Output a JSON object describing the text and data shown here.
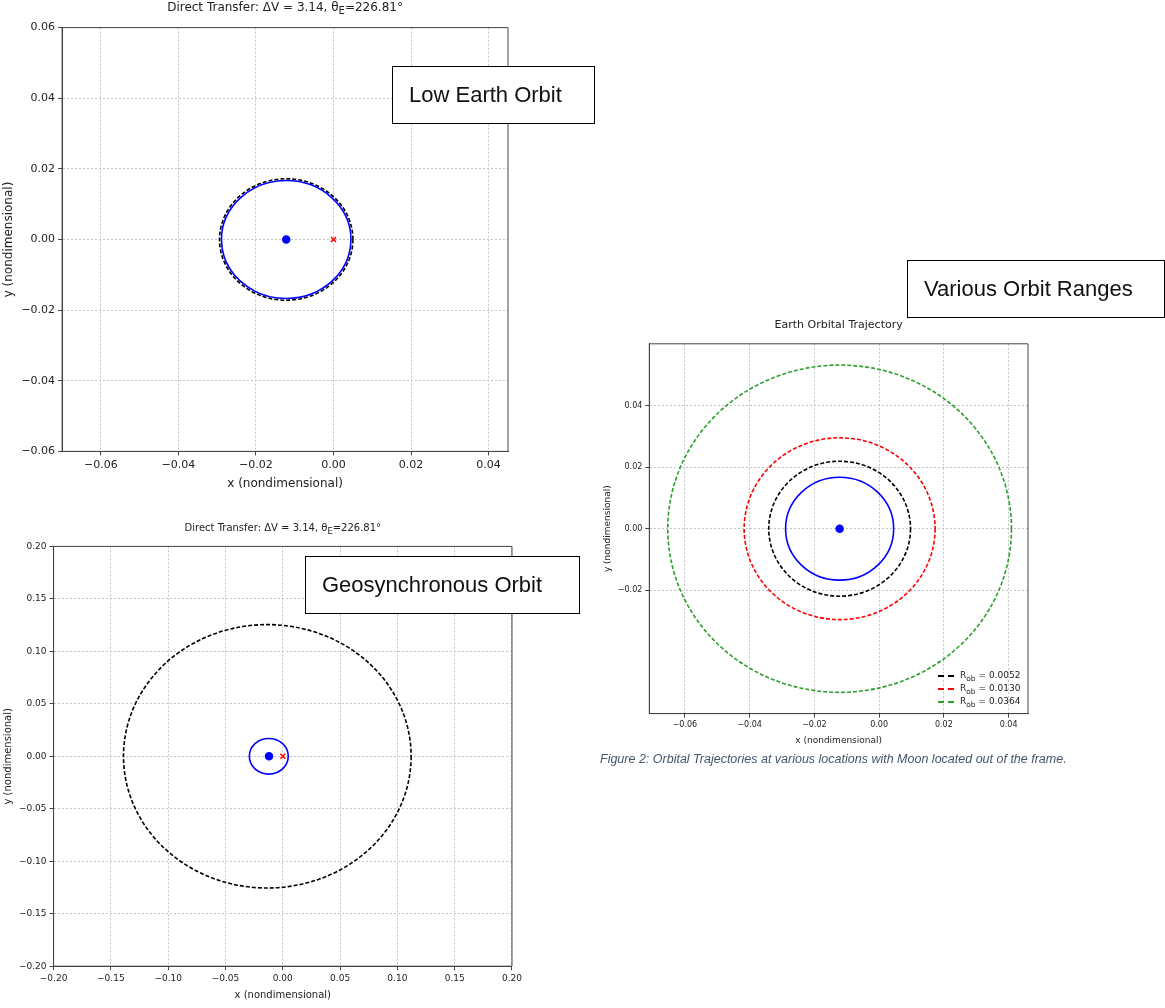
{
  "chart_data": [
    {
      "type": "scatter",
      "title": "Direct Transfer: ΔV = 3.14, θ$_{E}$=226.81°",
      "xlabel": "x (nondimensional)",
      "ylabel": "y (nondimensional)",
      "xlim": [
        -0.07,
        0.045
      ],
      "ylim": [
        -0.06,
        0.06
      ],
      "xticks": [
        {
          "value": -0.06,
          "label": "−0.06"
        },
        {
          "value": -0.04,
          "label": "−0.04"
        },
        {
          "value": -0.02,
          "label": "−0.02"
        },
        {
          "value": 0,
          "label": "0.00"
        },
        {
          "value": 0.02,
          "label": "0.02"
        },
        {
          "value": 0.04,
          "label": "0.04"
        }
      ],
      "yticks": [
        {
          "value": -0.06,
          "label": "−0.06"
        },
        {
          "value": -0.04,
          "label": "−0.04"
        },
        {
          "value": -0.02,
          "label": "−0.02"
        },
        {
          "value": 0,
          "label": "0.00"
        },
        {
          "value": 0.02,
          "label": "0.02"
        },
        {
          "value": 0.04,
          "label": "0.04"
        },
        {
          "value": 0.06,
          "label": "0.06"
        }
      ],
      "grid": true,
      "annotations": [
        "Low Earth Orbit"
      ],
      "series": [
        {
          "color": "#0000ff",
          "marker": "circle",
          "x": [
            -0.0122
          ],
          "values": [
            0
          ]
        },
        {
          "color": "#ff0000",
          "marker": "cross",
          "x": [
            0
          ],
          "values": [
            0
          ]
        }
      ]
    },
    {
      "type": "scatter",
      "title": "Direct Transfer: ΔV = 3.14, θ$_{E}$=226.81°",
      "xlabel": "x (nondimensional)",
      "ylabel": "y (nondimensional)",
      "xlim": [
        -0.2,
        0.2
      ],
      "ylim": [
        -0.2,
        0.2
      ],
      "xticks": [
        {
          "value": -0.2,
          "label": "−0.20"
        },
        {
          "value": -0.15,
          "label": "−0.15"
        },
        {
          "value": -0.1,
          "label": "−0.10"
        },
        {
          "value": -0.05,
          "label": "−0.05"
        },
        {
          "value": 0,
          "label": "0.00"
        },
        {
          "value": 0.05,
          "label": "0.05"
        },
        {
          "value": 0.1,
          "label": "0.10"
        },
        {
          "value": 0.15,
          "label": "0.15"
        },
        {
          "value": 0.2,
          "label": "0.20"
        }
      ],
      "yticks": [
        {
          "value": -0.2,
          "label": "−0.20"
        },
        {
          "value": -0.15,
          "label": "−0.15"
        },
        {
          "value": -0.1,
          "label": "−0.10"
        },
        {
          "value": -0.05,
          "label": "−0.05"
        },
        {
          "value": 0,
          "label": "0.00"
        },
        {
          "value": 0.05,
          "label": "0.05"
        },
        {
          "value": 0.1,
          "label": "0.10"
        },
        {
          "value": 0.15,
          "label": "0.15"
        },
        {
          "value": 0.2,
          "label": "0.20"
        }
      ],
      "grid": true,
      "annotations": [
        "Geosynchronous Orbit"
      ],
      "series": [
        {
          "color": "#0000ff",
          "marker": "circle",
          "x": [
            -0.012
          ],
          "values": [
            0
          ]
        },
        {
          "color": "#ff0000",
          "marker": "cross",
          "x": [
            0
          ],
          "values": [
            0
          ]
        }
      ]
    },
    {
      "type": "scatter",
      "title": "Earth Orbital Trajectory",
      "xlabel": "x (nondimensional)",
      "ylabel": "y (nondimensional)",
      "xlim": [
        -0.071,
        0.046
      ],
      "ylim": [
        -0.06,
        0.06
      ],
      "xticks": [
        {
          "value": -0.06,
          "label": "−0.06"
        },
        {
          "value": -0.04,
          "label": "−0.04"
        },
        {
          "value": -0.02,
          "label": "−0.02"
        },
        {
          "value": 0,
          "label": "0.00"
        },
        {
          "value": 0.02,
          "label": "0.02"
        },
        {
          "value": 0.04,
          "label": "0.04"
        }
      ],
      "yticks": [
        {
          "value": -0.02,
          "label": "−0.02"
        },
        {
          "value": 0,
          "label": "0.00"
        },
        {
          "value": 0.02,
          "label": "0.02"
        },
        {
          "value": 0.04,
          "label": "0.04"
        }
      ],
      "grid": true,
      "annotations": [
        "Various Orbit Ranges",
        "Figure 2: Orbital Trajectories at various locations with Moon located out of the frame.",
        "R$_{ob}$ = 0.0052",
        "R$_{ob}$ = 0.0130",
        "R$_{ob}$ = 0.0364"
      ],
      "series": [
        {
          "color": "#0000ff",
          "marker": "circle",
          "x": [
            -0.0122
          ],
          "values": [
            0
          ]
        }
      ]
    }
  ]
}
